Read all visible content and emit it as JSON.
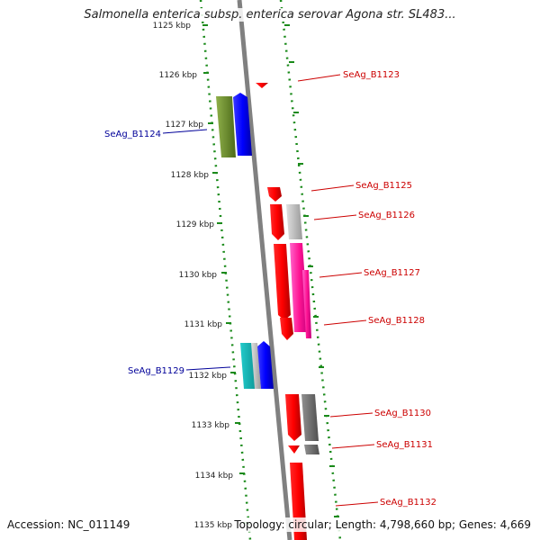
{
  "title": "Salmonella enterica subsp. enterica serovar Agona str. SL483...",
  "accession": "Accession: NC_011149",
  "topology": "Topology: circular; Length: 4,798,660 bp; Genes: 4,669",
  "ticks": [
    "1125 kbp",
    "1126 kbp",
    "1127 kbp",
    "1128 kbp",
    "1129 kbp",
    "1130 kbp",
    "1131 kbp",
    "1132 kbp",
    "1133 kbp",
    "1134 kbp",
    "1135 kbp"
  ],
  "genes": {
    "left": [
      "SeAg_B1124",
      "SeAg_B1129"
    ],
    "right": [
      "SeAg_B1123",
      "SeAg_B1125",
      "SeAg_B1126",
      "SeAg_B1127",
      "SeAg_B1128",
      "SeAg_B1130",
      "SeAg_B1131",
      "SeAg_B1132"
    ]
  },
  "colors": {
    "right_label": "#cc0000",
    "left_label": "#000099",
    "backbone": "#808080",
    "tick": "#1a8a1a"
  }
}
